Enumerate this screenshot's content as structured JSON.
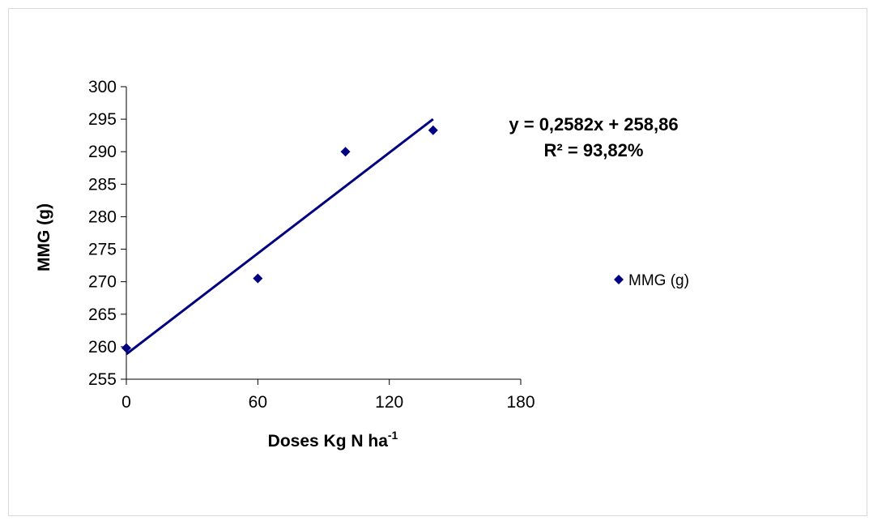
{
  "chart_data": {
    "type": "scatter",
    "xlabel": "Doses Kg N ha",
    "xlabel_sup": "-1",
    "ylabel": "MMG (g)",
    "xlim": [
      0,
      180
    ],
    "ylim": [
      255,
      300
    ],
    "x_ticks": [
      "0",
      "60",
      "120",
      "180"
    ],
    "y_ticks": [
      "300",
      "295",
      "290",
      "285",
      "280",
      "275",
      "270",
      "265",
      "260",
      "255"
    ],
    "series": [
      {
        "name": "MMG (g)",
        "color": "#000080",
        "marker": "diamond",
        "x": [
          0,
          60,
          100,
          140
        ],
        "y": [
          259.8,
          270.5,
          290.0,
          293.3
        ]
      }
    ],
    "trendline": {
      "type": "linear",
      "slope": 0.2582,
      "intercept": 258.86,
      "x_range": [
        0,
        140
      ],
      "color": "#000080"
    },
    "annotations": {
      "equation": "y = 0,2582x + 258,86",
      "r_squared": "R² = 93,82%"
    },
    "legend": {
      "position": "right",
      "label": "MMG (g)"
    },
    "grid": false
  }
}
